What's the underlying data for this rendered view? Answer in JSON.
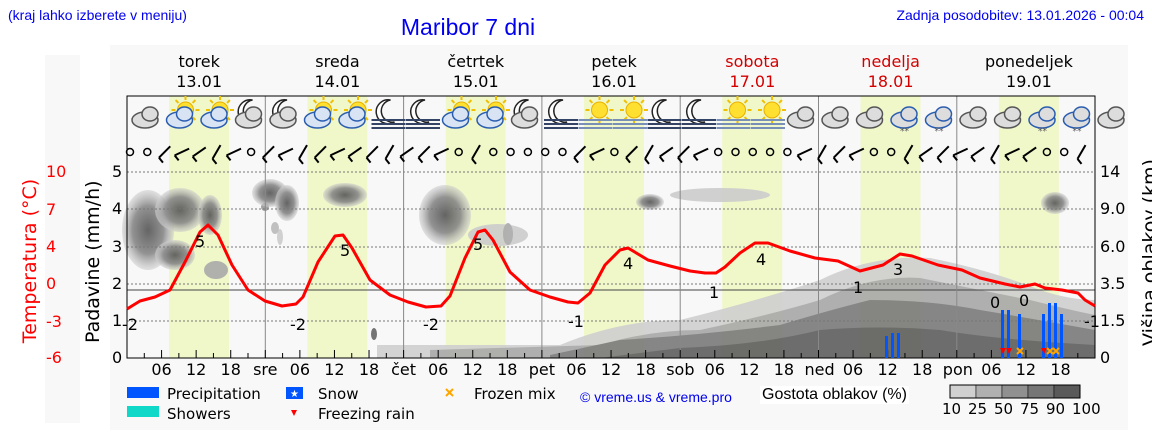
{
  "header": {
    "menu_hint": "(kraj lahko izberete v meniju)",
    "title": "Maribor 7 dni",
    "last_update": "Zadnja posodobitev: 13.01.2026 - 00:04"
  },
  "days": [
    {
      "name": "torek",
      "date": "13.01",
      "weekend": false
    },
    {
      "name": "sreda",
      "date": "14.01",
      "weekend": false
    },
    {
      "name": "četrtek",
      "date": "15.01",
      "weekend": false
    },
    {
      "name": "petek",
      "date": "16.01",
      "weekend": false
    },
    {
      "name": "sobota",
      "date": "17.01",
      "weekend": true
    },
    {
      "name": "nedelja",
      "date": "18.01",
      "weekend": true
    },
    {
      "name": "ponedeljek",
      "date": "19.01",
      "weekend": false
    }
  ],
  "axes": {
    "left_temp_label": "Temperatura (°C)",
    "left_temp_ticks": [
      "10",
      "7",
      "4",
      "0",
      "-3",
      "-6"
    ],
    "left_precip_label": "Padavine (mm/h)",
    "left_precip_ticks": [
      "5",
      "4",
      "3",
      "2",
      "1",
      "0"
    ],
    "right_label": "Višina oblakov (km)",
    "right_ticks": [
      "14",
      "9.0",
      "6.0",
      "3.5",
      "1.5",
      "0"
    ],
    "x_ticks": [
      "06",
      "12",
      "18",
      "sre",
      "06",
      "12",
      "18",
      "čet",
      "06",
      "12",
      "18",
      "pet",
      "06",
      "12",
      "18",
      "sob",
      "06",
      "12",
      "18",
      "ned",
      "06",
      "12",
      "18",
      "pon",
      "06",
      "12",
      "18"
    ]
  },
  "legend": {
    "precipitation": "Precipitation",
    "showers": "Showers",
    "snow": "Snow",
    "freezing_rain": "Freezing rain",
    "frozen_mix": "Frozen mix",
    "credit": "© vreme.us & vreme.pro",
    "cloud_density_label": "Gostota oblakov (%)",
    "cloud_density_ticks": [
      "10",
      "25",
      "50",
      "75",
      "90",
      "100"
    ]
  },
  "colors": {
    "precipitation": "#0055ff",
    "showers": "#10d8c8",
    "snow": "#0055ff",
    "freezing_rain": "#ff0000",
    "frozen_mix": "#ffa500",
    "temperature": "#ff0000",
    "daylight": "#f0f7c8",
    "link": "#0000ee",
    "weekend": "#d40000"
  },
  "chart_data": {
    "type": "line",
    "title": "Maribor 7 dni",
    "xlabel": "",
    "ylabel": "Temperatura (°C)",
    "ylabel_secondary": "Padavine (mm/h)",
    "ylabel_right": "Višina oblakov (km)",
    "ylim_temp": [
      -6,
      10
    ],
    "ylim_precip": [
      0,
      5
    ],
    "grid": true,
    "x_hours": [
      0,
      6,
      12,
      18,
      24,
      30,
      36,
      42,
      48,
      54,
      60,
      66,
      72,
      78,
      84,
      90,
      96,
      102,
      108,
      114,
      120,
      126,
      132,
      138,
      144,
      150,
      156,
      162,
      168
    ],
    "series": [
      {
        "name": "Temperatura (°C)",
        "values": [
          -1.5,
          -0.8,
          4.7,
          1.5,
          -0.3,
          -1.5,
          4.3,
          1.2,
          -0.5,
          -1.7,
          4.5,
          1.2,
          -0.5,
          -1.0,
          3.5,
          2.4,
          1.8,
          1.3,
          3.5,
          3.0,
          2.7,
          1.9,
          3.3,
          2.6,
          0.8,
          0.2,
          0.3,
          -0.1,
          -1.2
        ]
      }
    ],
    "temperature_labels": [
      {
        "day": "13.01",
        "min": -2,
        "max": 5
      },
      {
        "day": "14.01",
        "min": -2,
        "max": 5
      },
      {
        "day": "15.01",
        "min": -2,
        "max": 5
      },
      {
        "day": "16.01",
        "min": -1,
        "max": 4
      },
      {
        "day": "17.01",
        "min": 1,
        "max": 4
      },
      {
        "day": "18.01",
        "min": 1,
        "max": 3
      },
      {
        "day": "19.01",
        "min": 0,
        "max": 0,
        "end": -1
      }
    ],
    "precipitation_events": [
      {
        "time": "18.01 ~12h",
        "type": "precipitation",
        "mm_h": 0.7
      },
      {
        "time": "19.01 ~09h",
        "type": "precipitation+freezing rain",
        "mm_h": 1.3
      },
      {
        "time": "19.01 ~11h",
        "type": "precipitation+frozen mix",
        "mm_h": 1.2
      },
      {
        "time": "19.01 ~16h",
        "type": "precipitation+frozen mix/freezing rain",
        "mm_h": 1.5
      }
    ],
    "legend": [
      "Precipitation",
      "Showers",
      "Snow",
      "Freezing rain",
      "Frozen mix"
    ]
  }
}
